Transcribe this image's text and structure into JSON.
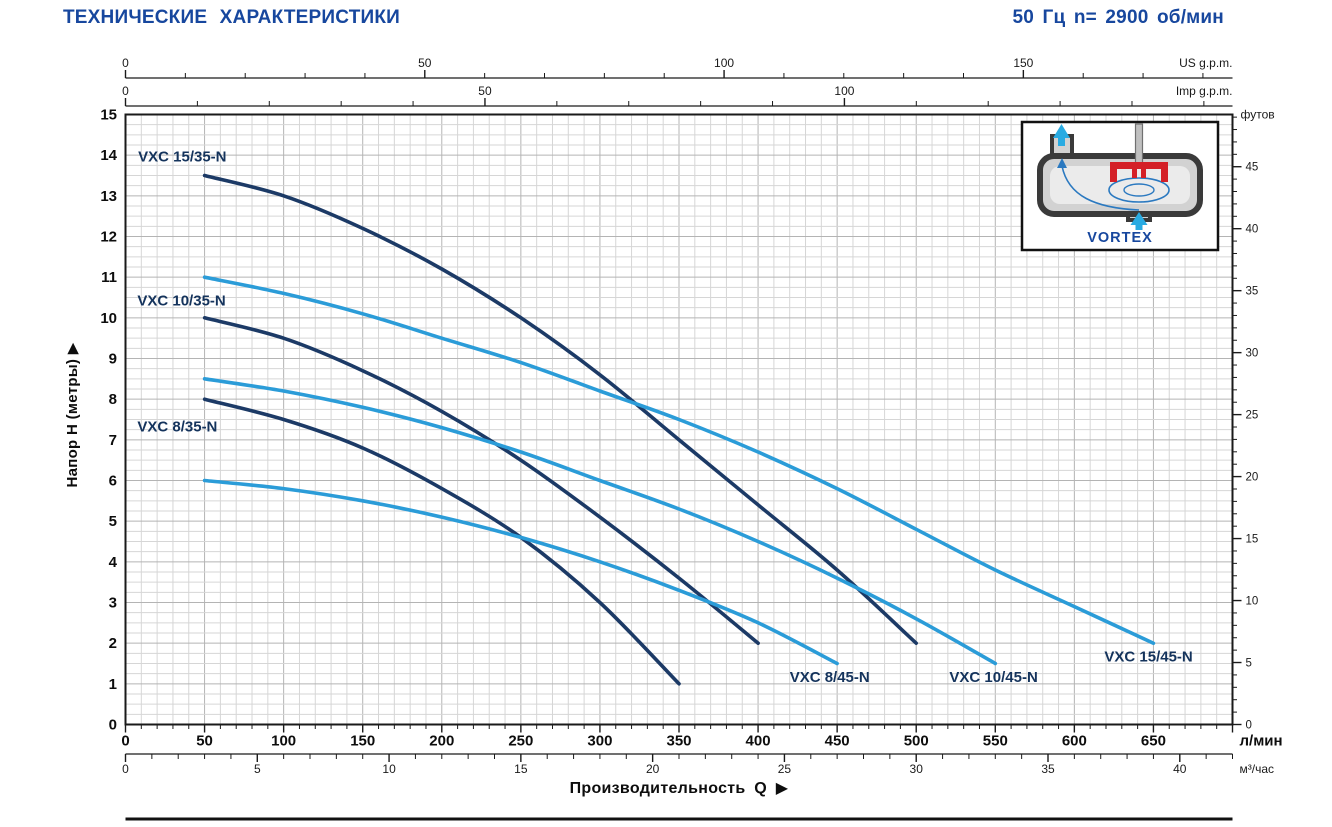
{
  "header": {
    "title": "ТЕХНИЧЕСКИЕ ХАРАКТЕРИСТИКИ",
    "spec": "50 Гц n= 2900 об/мин"
  },
  "labels": {
    "y_axis": "Напор H (метры)  ▶",
    "x_axis": "Производительность  Q  ▶",
    "inset": "VORTEX"
  },
  "chart_data": {
    "type": "line",
    "title": "ТЕХНИЧЕСКИЕ ХАРАКТЕРИСТИКИ",
    "subtitle": "50 Гц n= 2900 об/мин",
    "grid": true,
    "x_primary": {
      "unit": "л/мин",
      "min": 0,
      "max": 700,
      "labeled_ticks": [
        0,
        50,
        100,
        150,
        200,
        250,
        300,
        350,
        400,
        450,
        500,
        550,
        600,
        650
      ],
      "minor_step": 10
    },
    "x_secondary_axes": [
      {
        "unit": "US g.p.m.",
        "lmin_per_unit": 3.785,
        "labeled_ticks": [
          0,
          50,
          100,
          150
        ],
        "minor_step": 10
      },
      {
        "unit": "Imp g.p.m.",
        "lmin_per_unit": 4.546,
        "labeled_ticks": [
          0,
          50,
          100
        ],
        "minor_step": 10
      },
      {
        "unit": "м³/час",
        "lmin_per_unit": 16.6667,
        "labeled_ticks": [
          0,
          5,
          10,
          15,
          20,
          25,
          30,
          35,
          40
        ],
        "minor_step": 1
      }
    ],
    "y_primary": {
      "label": "Напор H (метры)",
      "unit": "м",
      "min": 0,
      "max": 15,
      "labeled_ticks": [
        0,
        1,
        2,
        3,
        4,
        5,
        6,
        7,
        8,
        9,
        10,
        11,
        12,
        13,
        14,
        15
      ],
      "minor_step": 0.25
    },
    "y_secondary": {
      "unit": "футов",
      "m_per_unit": 0.3048,
      "labeled_ticks": [
        0,
        5,
        10,
        15,
        20,
        25,
        30,
        35,
        40,
        45
      ],
      "minor_step": 1
    },
    "colors": {
      "dark_curve": "#1c3a66",
      "light_curve": "#2b9cd8",
      "curve_label": "#14335c",
      "grid_minor": "#d6d6d6",
      "grid_major": "#b4b4b4",
      "axis": "#1a1a1a",
      "accent": "#17479e"
    },
    "series": [
      {
        "name": "VXC 15/35-N",
        "color_key": "dark_curve",
        "label_pos": [
          8,
          13.85
        ],
        "points": [
          [
            50,
            13.5
          ],
          [
            100,
            13.0
          ],
          [
            150,
            12.2
          ],
          [
            200,
            11.2
          ],
          [
            250,
            10.0
          ],
          [
            300,
            8.6
          ],
          [
            350,
            7.0
          ],
          [
            400,
            5.4
          ],
          [
            450,
            3.8
          ],
          [
            500,
            2.0
          ]
        ]
      },
      {
        "name": "VXC 10/35-N",
        "color_key": "dark_curve",
        "label_pos": [
          7.5,
          10.3
        ],
        "points": [
          [
            50,
            10.0
          ],
          [
            100,
            9.5
          ],
          [
            150,
            8.7
          ],
          [
            200,
            7.7
          ],
          [
            250,
            6.5
          ],
          [
            300,
            5.1
          ],
          [
            350,
            3.6
          ],
          [
            400,
            2.0
          ]
        ]
      },
      {
        "name": "VXC 8/35-N",
        "color_key": "dark_curve",
        "label_pos": [
          7.5,
          7.2
        ],
        "points": [
          [
            50,
            8.0
          ],
          [
            100,
            7.5
          ],
          [
            150,
            6.8
          ],
          [
            200,
            5.8
          ],
          [
            250,
            4.6
          ],
          [
            300,
            3.0
          ],
          [
            350,
            1.0
          ]
        ]
      },
      {
        "name": "VXC 15/45-N",
        "color_key": "light_curve",
        "label_pos": [
          619,
          1.55
        ],
        "points": [
          [
            50,
            11.0
          ],
          [
            100,
            10.6
          ],
          [
            150,
            10.1
          ],
          [
            200,
            9.5
          ],
          [
            250,
            8.9
          ],
          [
            300,
            8.2
          ],
          [
            350,
            7.5
          ],
          [
            400,
            6.7
          ],
          [
            450,
            5.8
          ],
          [
            500,
            4.8
          ],
          [
            550,
            3.8
          ],
          [
            600,
            2.9
          ],
          [
            650,
            2.0
          ]
        ]
      },
      {
        "name": "VXC 10/45-N",
        "color_key": "light_curve",
        "label_pos": [
          521,
          1.05
        ],
        "points": [
          [
            50,
            8.5
          ],
          [
            100,
            8.2
          ],
          [
            150,
            7.8
          ],
          [
            200,
            7.3
          ],
          [
            250,
            6.7
          ],
          [
            300,
            6.0
          ],
          [
            350,
            5.3
          ],
          [
            400,
            4.5
          ],
          [
            450,
            3.6
          ],
          [
            500,
            2.6
          ],
          [
            550,
            1.5
          ]
        ]
      },
      {
        "name": "VXC 8/45-N",
        "color_key": "light_curve",
        "label_pos": [
          420,
          1.05
        ],
        "points": [
          [
            50,
            6.0
          ],
          [
            100,
            5.8
          ],
          [
            150,
            5.5
          ],
          [
            200,
            5.1
          ],
          [
            250,
            4.6
          ],
          [
            300,
            4.0
          ],
          [
            350,
            3.3
          ],
          [
            400,
            2.5
          ],
          [
            450,
            1.5
          ]
        ]
      }
    ]
  }
}
